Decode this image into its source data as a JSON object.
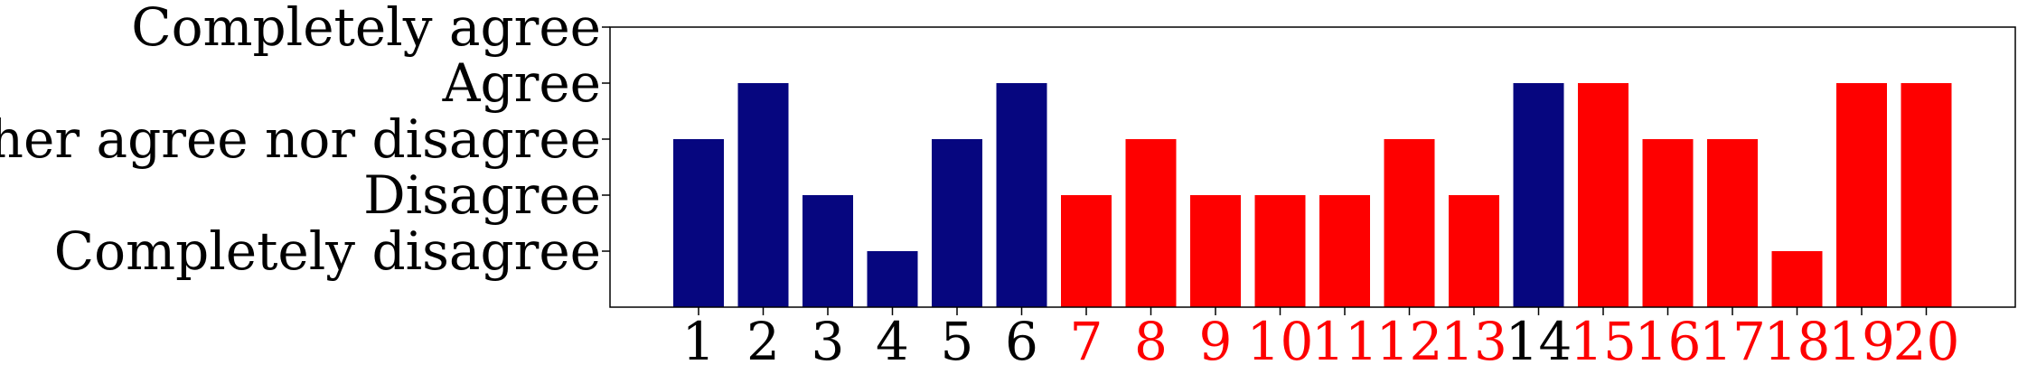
{
  "chart_data": {
    "type": "bar",
    "categories": [
      "1",
      "2",
      "3",
      "4",
      "5",
      "6",
      "7",
      "8",
      "9",
      "10",
      "11",
      "12",
      "13",
      "14",
      "15",
      "16",
      "17",
      "18",
      "19",
      "20"
    ],
    "values": [
      3,
      4,
      2,
      1,
      3,
      4,
      2,
      3,
      2,
      2,
      2,
      3,
      2,
      4,
      4,
      3,
      3,
      1,
      4,
      4
    ],
    "bar_groups": [
      "blue",
      "blue",
      "blue",
      "blue",
      "blue",
      "blue",
      "red",
      "red",
      "red",
      "red",
      "red",
      "red",
      "red",
      "blue",
      "red",
      "red",
      "red",
      "red",
      "red",
      "red"
    ],
    "y_tick_values": [
      1,
      2,
      3,
      4,
      5
    ],
    "y_tick_labels": [
      "Completely disagree",
      "Disagree",
      "Neither agree nor disagree",
      "Agree",
      "Completely agree"
    ],
    "ylim": [
      0,
      5
    ],
    "title": "",
    "xlabel": "",
    "ylabel": "",
    "grid": false,
    "legend": "none"
  },
  "colors": {
    "blue": "#06067f",
    "red": "#fe0000",
    "blue_label": "#000000",
    "red_label": "#fe0000"
  }
}
